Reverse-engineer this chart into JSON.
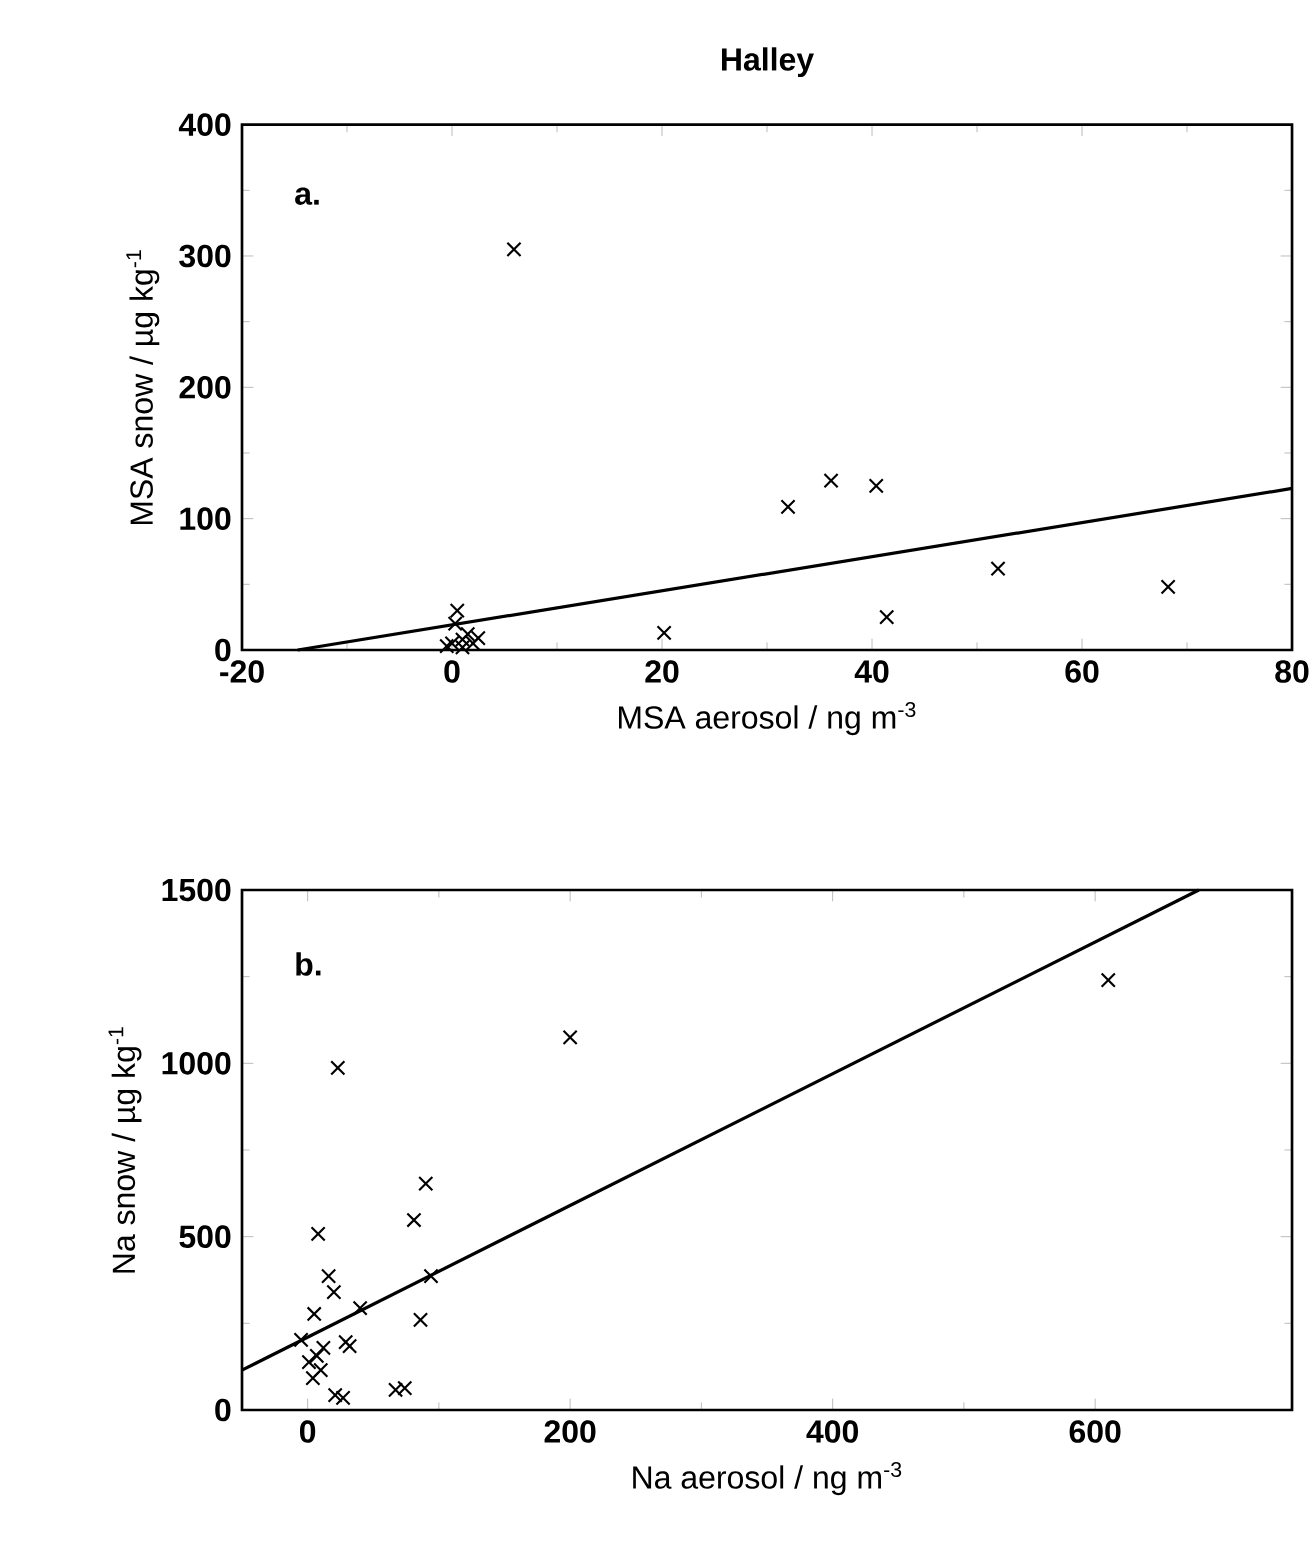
{
  "chart_data": [
    {
      "type": "scatter",
      "title": "Halley",
      "xlabel": "MSA aerosol / ng m$^{-3}$",
      "ylabel": "MSA snow / µg kg$^{-1}$",
      "xlim": [
        -20,
        80
      ],
      "ylim": [
        0,
        400
      ],
      "xticks": [
        -20,
        0,
        20,
        40,
        60,
        80
      ],
      "yticks": [
        0,
        100,
        200,
        300,
        400
      ],
      "annotations": [
        "a."
      ],
      "series": [
        {
          "marker": "cross",
          "color": "#000000",
          "x": [
            5.9,
            20.2,
            32,
            36.1,
            40.4,
            41.4,
            52,
            68.2,
            0.5,
            0,
            0.5,
            1,
            1.5,
            2,
            0,
            -0.5,
            1,
            2.5,
            0.3
          ],
          "values": [
            305,
            13,
            109,
            129,
            125,
            25,
            62,
            48,
            30,
            5,
            null,
            8,
            12,
            5,
            null,
            3,
            2,
            9,
            20
          ]
        },
        {
          "type": "line",
          "marker": "none",
          "color": "#000000",
          "x": [
            -14.7,
            80
          ],
          "values": [
            0,
            123
          ]
        }
      ]
    },
    {
      "type": "scatter",
      "xlabel": "Na aerosol / ng m$^{-3}$",
      "ylabel": "Na snow / µg kg$^{-1}$",
      "xlim": [
        -50,
        750
      ],
      "ylim": [
        0,
        1500
      ],
      "xticks": [
        0,
        200,
        400,
        600
      ],
      "yticks": [
        0,
        500,
        1000,
        1500
      ],
      "annotations": [
        "b."
      ],
      "series": [
        {
          "marker": "cross",
          "color": "#000000",
          "x": [
            610,
            200,
            23,
            90,
            81,
            8,
            94,
            86,
            16,
            20,
            40,
            5,
            -5,
            32,
            29,
            1,
            10,
            4,
            21,
            27,
            67,
            74,
            7,
            12
          ],
          "values": [
            1240,
            1075,
            987,
            653,
            548,
            508,
            386,
            260,
            386,
            340,
            294,
            277,
            202,
            184,
            196,
            138,
            115,
            92,
            43,
            35,
            58,
            63,
            156,
            179
          ]
        },
        {
          "type": "line",
          "marker": "none",
          "color": "#000000",
          "x": [
            -50,
            679
          ],
          "values": [
            115,
            1500
          ]
        }
      ]
    }
  ]
}
